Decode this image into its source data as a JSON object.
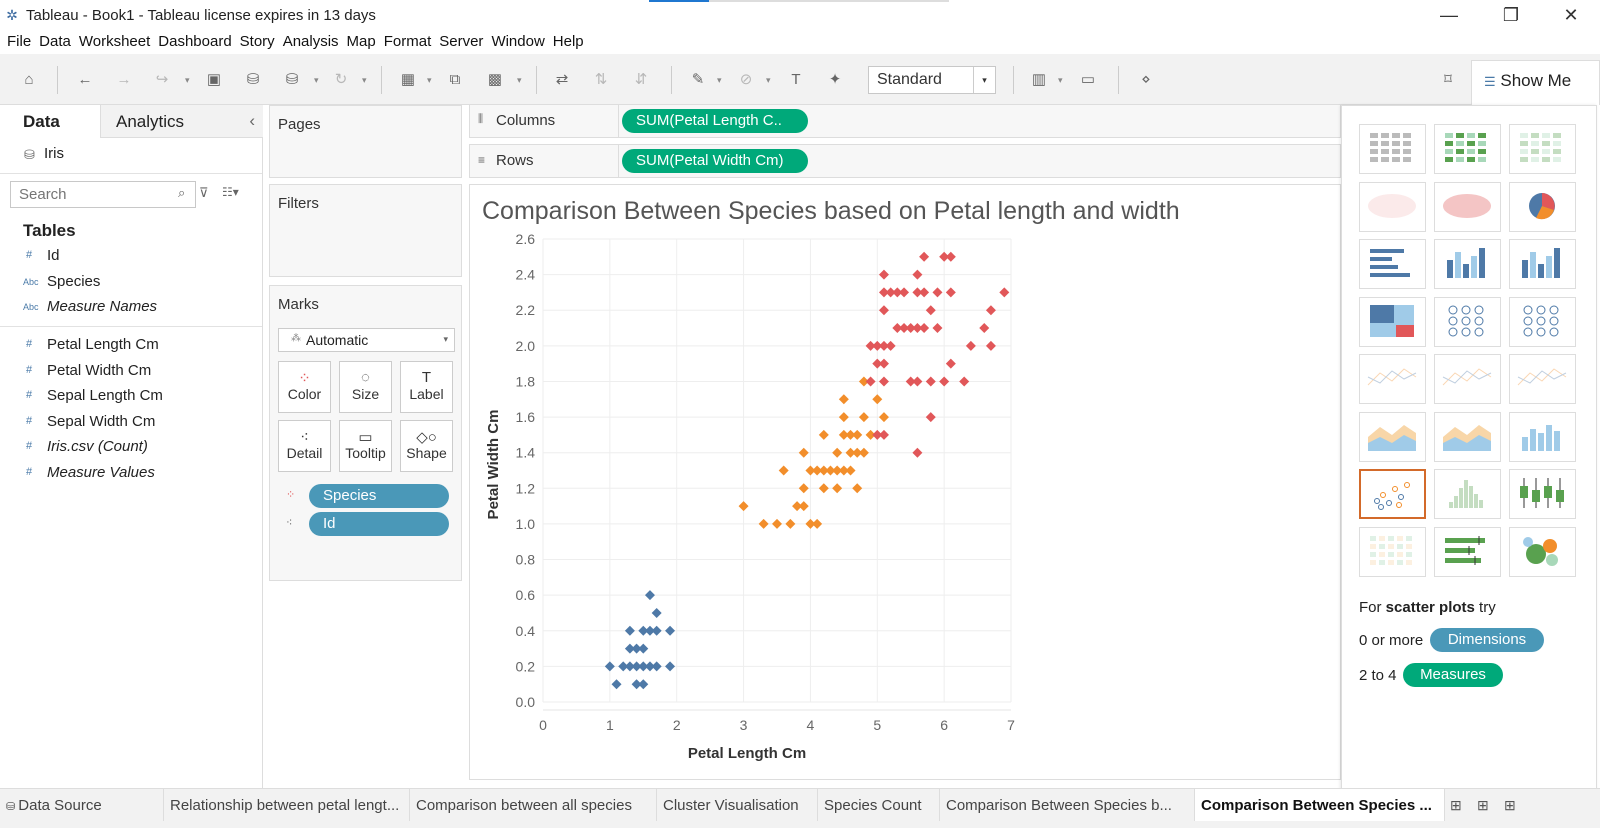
{
  "titlebar": {
    "title": "Tableau - Book1 - Tableau license expires in 13 days",
    "minimize": "—",
    "restore": "❐",
    "close": "✕"
  },
  "menu": [
    "File",
    "Data",
    "Worksheet",
    "Dashboard",
    "Story",
    "Analysis",
    "Map",
    "Format",
    "Server",
    "Window",
    "Help"
  ],
  "toolbar": {
    "fit": "Standard",
    "show_me": "Show Me"
  },
  "data_pane": {
    "tabs": [
      "Data",
      "Analytics"
    ],
    "collapse": "‹",
    "datasource": "Iris",
    "search_placeholder": "Search",
    "tables_header": "Tables",
    "dimensions": [
      {
        "icon": "#",
        "name": "Id"
      },
      {
        "icon": "Abc",
        "name": "Species"
      },
      {
        "icon": "Abc",
        "name": "Measure Names"
      }
    ],
    "measures": [
      {
        "icon": "#",
        "name": "Petal Length Cm"
      },
      {
        "icon": "#",
        "name": "Petal Width Cm"
      },
      {
        "icon": "#",
        "name": "Sepal Length Cm"
      },
      {
        "icon": "#",
        "name": "Sepal Width Cm"
      },
      {
        "icon": "#",
        "name": "Iris.csv (Count)"
      },
      {
        "icon": "#",
        "name": "Measure Values"
      }
    ]
  },
  "cards": {
    "pages": "Pages",
    "filters": "Filters",
    "marks": "Marks",
    "mark_type": "Automatic",
    "mark_buttons": [
      "Color",
      "Size",
      "Label",
      "Detail",
      "Tooltip",
      "Shape"
    ],
    "mark_pills": [
      "Species",
      "Id"
    ]
  },
  "shelves": {
    "columns_label": "Columns",
    "columns_pill": "SUM(Petal Length C..",
    "rows_label": "Rows",
    "rows_pill": "SUM(Petal Width Cm)"
  },
  "chart_data": {
    "type": "scatter",
    "title": "Comparison Between Species based on Petal length and width",
    "xlabel": "Petal Length Cm",
    "ylabel": "Petal Width Cm",
    "xlim": [
      0,
      7
    ],
    "ylim": [
      0,
      2.6
    ],
    "xticks": [
      0,
      1,
      2,
      3,
      4,
      5,
      6,
      7
    ],
    "yticks": [
      0.0,
      0.2,
      0.4,
      0.6,
      0.8,
      1.0,
      1.2,
      1.4,
      1.6,
      1.8,
      2.0,
      2.2,
      2.4,
      2.6
    ],
    "grid": true,
    "series": [
      {
        "color": "#4e79a7",
        "points": [
          [
            1.0,
            0.2
          ],
          [
            1.1,
            0.1
          ],
          [
            1.2,
            0.2
          ],
          [
            1.3,
            0.2
          ],
          [
            1.4,
            0.2
          ],
          [
            1.5,
            0.2
          ],
          [
            1.6,
            0.2
          ],
          [
            1.7,
            0.2
          ],
          [
            1.9,
            0.2
          ],
          [
            1.4,
            0.1
          ],
          [
            1.5,
            0.1
          ],
          [
            1.3,
            0.3
          ],
          [
            1.4,
            0.3
          ],
          [
            1.5,
            0.3
          ],
          [
            1.3,
            0.4
          ],
          [
            1.5,
            0.4
          ],
          [
            1.6,
            0.4
          ],
          [
            1.7,
            0.4
          ],
          [
            1.9,
            0.4
          ],
          [
            1.7,
            0.5
          ],
          [
            1.6,
            0.6
          ]
        ]
      },
      {
        "color": "#f28e2b",
        "points": [
          [
            3.0,
            1.1
          ],
          [
            3.3,
            1.0
          ],
          [
            3.5,
            1.0
          ],
          [
            3.7,
            1.0
          ],
          [
            4.0,
            1.0
          ],
          [
            4.1,
            1.0
          ],
          [
            3.8,
            1.1
          ],
          [
            3.9,
            1.1
          ],
          [
            3.9,
            1.2
          ],
          [
            4.2,
            1.2
          ],
          [
            4.4,
            1.2
          ],
          [
            4.7,
            1.2
          ],
          [
            3.6,
            1.3
          ],
          [
            4.0,
            1.3
          ],
          [
            4.1,
            1.3
          ],
          [
            4.2,
            1.3
          ],
          [
            4.3,
            1.3
          ],
          [
            4.4,
            1.3
          ],
          [
            4.5,
            1.3
          ],
          [
            4.6,
            1.3
          ],
          [
            3.9,
            1.4
          ],
          [
            4.4,
            1.4
          ],
          [
            4.6,
            1.4
          ],
          [
            4.7,
            1.4
          ],
          [
            4.8,
            1.4
          ],
          [
            4.2,
            1.5
          ],
          [
            4.5,
            1.5
          ],
          [
            4.6,
            1.5
          ],
          [
            4.7,
            1.5
          ],
          [
            4.9,
            1.5
          ],
          [
            4.5,
            1.6
          ],
          [
            4.8,
            1.6
          ],
          [
            5.1,
            1.6
          ],
          [
            4.5,
            1.7
          ],
          [
            5.0,
            1.7
          ],
          [
            4.8,
            1.8
          ]
        ]
      },
      {
        "color": "#e15759",
        "points": [
          [
            5.0,
            1.5
          ],
          [
            5.1,
            1.5
          ],
          [
            4.9,
            1.8
          ],
          [
            5.1,
            1.8
          ],
          [
            5.5,
            1.8
          ],
          [
            5.6,
            1.8
          ],
          [
            5.8,
            1.8
          ],
          [
            6.0,
            1.8
          ],
          [
            6.3,
            1.8
          ],
          [
            5.0,
            1.9
          ],
          [
            5.1,
            1.9
          ],
          [
            6.1,
            1.9
          ],
          [
            4.9,
            2.0
          ],
          [
            5.0,
            2.0
          ],
          [
            5.1,
            2.0
          ],
          [
            5.2,
            2.0
          ],
          [
            6.4,
            2.0
          ],
          [
            6.7,
            2.0
          ],
          [
            5.3,
            2.1
          ],
          [
            5.4,
            2.1
          ],
          [
            5.5,
            2.1
          ],
          [
            5.6,
            2.1
          ],
          [
            5.7,
            2.1
          ],
          [
            5.9,
            2.1
          ],
          [
            6.6,
            2.1
          ],
          [
            5.1,
            2.2
          ],
          [
            5.8,
            2.2
          ],
          [
            6.7,
            2.2
          ],
          [
            5.1,
            2.3
          ],
          [
            5.2,
            2.3
          ],
          [
            5.3,
            2.3
          ],
          [
            5.4,
            2.3
          ],
          [
            5.6,
            2.3
          ],
          [
            5.7,
            2.3
          ],
          [
            5.9,
            2.3
          ],
          [
            6.1,
            2.3
          ],
          [
            6.9,
            2.3
          ],
          [
            5.1,
            2.4
          ],
          [
            5.6,
            2.4
          ],
          [
            5.7,
            2.5
          ],
          [
            6.0,
            2.5
          ],
          [
            6.1,
            2.5
          ],
          [
            5.6,
            1.4
          ],
          [
            5.8,
            1.6
          ]
        ]
      }
    ]
  },
  "show_me": {
    "hint_pre": "For ",
    "hint_bold": "scatter plots",
    "hint_post": " try",
    "line1_pre": "0 or more",
    "line1_pill": "Dimensions",
    "line2_pre": "2 to 4",
    "line2_pill": "Measures",
    "selected_index": 18
  },
  "sheet_tabs": [
    "Data Source",
    "Relationship between petal lengt...",
    "Comparison between all species",
    "Cluster Visualisation",
    "Species Count",
    "Comparison Between Species b...",
    "Comparison Between Species ..."
  ],
  "active_tab": 6
}
